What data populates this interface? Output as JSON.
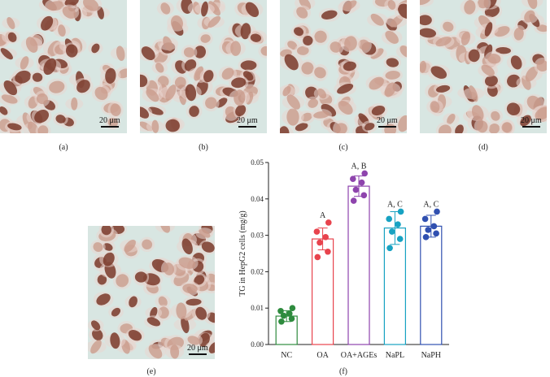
{
  "panels": [
    {
      "id": "a",
      "label": "(a)",
      "scale_text": "20 μm"
    },
    {
      "id": "b",
      "label": "(b)",
      "scale_text": "20 μm"
    },
    {
      "id": "c",
      "label": "(c)",
      "scale_text": "20 μm"
    },
    {
      "id": "d",
      "label": "(d)",
      "scale_text": "20 μm"
    },
    {
      "id": "e",
      "label": "(e)",
      "scale_text": "20 μm"
    }
  ],
  "chart_label": "(f)",
  "colors": {
    "NC": "#2e8b3e",
    "OA": "#e8434d",
    "OA+AGEs": "#8e44ad",
    "NaPL": "#17a2c2",
    "NaPH": "#3050b0",
    "cell_background": "#d8e6e2",
    "stain_dark": "#7a3a2a",
    "stain_light": "#c89888"
  },
  "chart_data": {
    "type": "bar",
    "ylabel": "TG in HepG2 cells (mg/g)",
    "ylim": [
      0,
      0.05
    ],
    "yticks": [
      "0.00",
      "0.01",
      "0.02",
      "0.03",
      "0.04",
      "0.05"
    ],
    "categories": [
      "NC",
      "OA",
      "OA+AGEs",
      "NaPL",
      "NaPH"
    ],
    "values": [
      0.0078,
      0.029,
      0.0435,
      0.032,
      0.0325
    ],
    "errors": [
      0.0015,
      0.003,
      0.0028,
      0.0045,
      0.003
    ],
    "significance": [
      "",
      "A",
      "A, B",
      "A, C",
      "A, C"
    ],
    "points": [
      [
        0.0063,
        0.0071,
        0.0079,
        0.0085,
        0.0092,
        0.01
      ],
      [
        0.024,
        0.0255,
        0.028,
        0.0295,
        0.031,
        0.0335
      ],
      [
        0.0395,
        0.041,
        0.0425,
        0.0445,
        0.0455,
        0.047
      ],
      [
        0.0265,
        0.029,
        0.031,
        0.033,
        0.0345,
        0.0365
      ],
      [
        0.0295,
        0.0305,
        0.0315,
        0.0325,
        0.0345,
        0.0365
      ]
    ],
    "grid": false
  }
}
